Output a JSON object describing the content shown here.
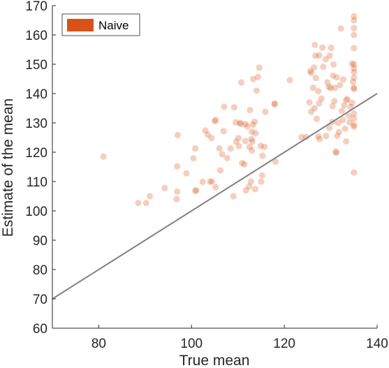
{
  "chart_data": {
    "type": "scatter",
    "xlabel": "True mean",
    "ylabel": "Estimate of the mean",
    "xlim": [
      70,
      140
    ],
    "ylim": [
      60,
      170
    ],
    "xticks": [
      80,
      100,
      120,
      140
    ],
    "yticks": [
      60,
      70,
      80,
      90,
      100,
      110,
      120,
      130,
      140,
      150,
      160,
      170
    ],
    "grid": false,
    "legend_position": "top-left",
    "reference_line": {
      "x": [
        70,
        140
      ],
      "y": [
        70,
        140
      ],
      "color": "#808080"
    },
    "series": [
      {
        "name": "Naive",
        "color": "#D95319",
        "points": [
          [
            81.0,
            118.5
          ],
          [
            88.5,
            102.7
          ],
          [
            90.2,
            102.7
          ],
          [
            91.0,
            105.0
          ],
          [
            94.2,
            107.8
          ],
          [
            96.8,
            104.0
          ],
          [
            96.9,
            106.6
          ],
          [
            96.9,
            115.2
          ],
          [
            97.0,
            125.8
          ],
          [
            98.9,
            112.8
          ],
          [
            100.4,
            117.9
          ],
          [
            100.8,
            106.8
          ],
          [
            100.8,
            121.3
          ],
          [
            101.0,
            107.0
          ],
          [
            102.4,
            109.9
          ],
          [
            103.0,
            127.4
          ],
          [
            103.5,
            126.0
          ],
          [
            104.0,
            110.0
          ],
          [
            104.3,
            124.8
          ],
          [
            104.4,
            110.0
          ],
          [
            105.0,
            130.6
          ],
          [
            105.2,
            131.0
          ],
          [
            105.2,
            108.1
          ],
          [
            106.0,
            121.3
          ],
          [
            106.2,
            113.8
          ],
          [
            106.6,
            119.3
          ],
          [
            106.9,
            127.2
          ],
          [
            107.0,
            135.5
          ],
          [
            107.7,
            118.0
          ],
          [
            108.4,
            121.3
          ],
          [
            109.0,
            105.0
          ],
          [
            109.2,
            135.3
          ],
          [
            109.5,
            130.2
          ],
          [
            109.6,
            123.6
          ],
          [
            110.1,
            124.8
          ],
          [
            110.2,
            122.1
          ],
          [
            110.4,
            130.0
          ],
          [
            110.6,
            129.7
          ],
          [
            110.7,
            143.8
          ],
          [
            110.9,
            116.3
          ],
          [
            111.4,
            115.9
          ],
          [
            111.6,
            123.8
          ],
          [
            111.6,
            129.6
          ],
          [
            111.7,
            107.0
          ],
          [
            112.0,
            128.8
          ],
          [
            112.4,
            108.3
          ],
          [
            112.5,
            121.8
          ],
          [
            112.6,
            134.4
          ],
          [
            112.8,
            110.0
          ],
          [
            112.9,
            124.5
          ],
          [
            113.0,
            120.6
          ],
          [
            113.0,
            127.0
          ],
          [
            113.1,
            123.6
          ],
          [
            113.2,
            129.4
          ],
          [
            113.3,
            144.9
          ],
          [
            113.6,
            130.4
          ],
          [
            113.7,
            107.4
          ],
          [
            113.8,
            126.5
          ],
          [
            114.0,
            141.0
          ],
          [
            114.3,
            145.7
          ],
          [
            114.6,
            148.8
          ],
          [
            114.9,
            122.2
          ],
          [
            115.0,
            110.0
          ],
          [
            115.2,
            112.1
          ],
          [
            115.3,
            118.8
          ],
          [
            115.7,
            121.8
          ],
          [
            115.9,
            133.8
          ],
          [
            117.9,
            136.3
          ],
          [
            117.9,
            136.6
          ],
          [
            118.1,
            116.8
          ],
          [
            121.2,
            144.6
          ],
          [
            123.7,
            125.2
          ],
          [
            124.7,
            125.2
          ],
          [
            125.4,
            137.0
          ],
          [
            125.6,
            147.7
          ],
          [
            125.8,
            133.8
          ],
          [
            125.8,
            147.0
          ],
          [
            126.2,
            142.0
          ],
          [
            126.4,
            148.9
          ],
          [
            126.5,
            135.0
          ],
          [
            126.6,
            156.6
          ],
          [
            126.7,
            152.9
          ],
          [
            126.8,
            145.3
          ],
          [
            127.0,
            131.4
          ],
          [
            127.3,
            140.8
          ],
          [
            127.3,
            125.4
          ],
          [
            127.5,
            153.0
          ],
          [
            127.5,
            136.7
          ],
          [
            127.6,
            124.5
          ],
          [
            128.0,
            138.3
          ],
          [
            128.2,
            155.7
          ],
          [
            128.4,
            149.1
          ],
          [
            128.9,
            151.7
          ],
          [
            129.0,
            125.5
          ],
          [
            129.3,
            143.8
          ],
          [
            129.6,
            142.3
          ],
          [
            129.7,
            128.3
          ],
          [
            129.8,
            152.9
          ],
          [
            130.0,
            141.8
          ],
          [
            130.1,
            155.6
          ],
          [
            130.3,
            130.3
          ],
          [
            130.4,
            135.7
          ],
          [
            130.5,
            146.1
          ],
          [
            130.6,
            149.9
          ],
          [
            130.8,
            137.4
          ],
          [
            130.9,
            142.0
          ],
          [
            131.1,
            120.2
          ],
          [
            131.2,
            119.8
          ],
          [
            131.3,
            145.5
          ],
          [
            131.4,
            125.6
          ],
          [
            131.6,
            130.0
          ],
          [
            131.8,
            126.9
          ],
          [
            132.0,
            142.9
          ],
          [
            132.2,
            162.2
          ],
          [
            132.4,
            134.1
          ],
          [
            132.6,
            131.0
          ],
          [
            132.7,
            144.8
          ],
          [
            132.9,
            136.0
          ],
          [
            133.1,
            128.0
          ],
          [
            133.3,
            123.7
          ],
          [
            133.3,
            137.8
          ],
          [
            133.6,
            138.1
          ],
          [
            133.9,
            132.3
          ],
          [
            134.1,
            130.2
          ],
          [
            134.3,
            135.4
          ],
          [
            134.6,
            136.8
          ],
          [
            134.6,
            150.2
          ],
          [
            134.8,
            144.0
          ],
          [
            135.0,
            145.4
          ],
          [
            135.0,
            147.3
          ],
          [
            135.0,
            150.0
          ],
          [
            135.0,
            155.5
          ],
          [
            135.0,
            160.0
          ],
          [
            135.0,
            162.3
          ],
          [
            135.0,
            165.0
          ],
          [
            135.0,
            166.3
          ],
          [
            135.0,
            148.6
          ],
          [
            135.0,
            142.0
          ],
          [
            135.0,
            141.6
          ],
          [
            135.0,
            133.2
          ],
          [
            135.0,
            131.5
          ],
          [
            135.0,
            129.3
          ],
          [
            135.0,
            128.7
          ],
          [
            135.0,
            113.1
          ]
        ]
      }
    ]
  }
}
